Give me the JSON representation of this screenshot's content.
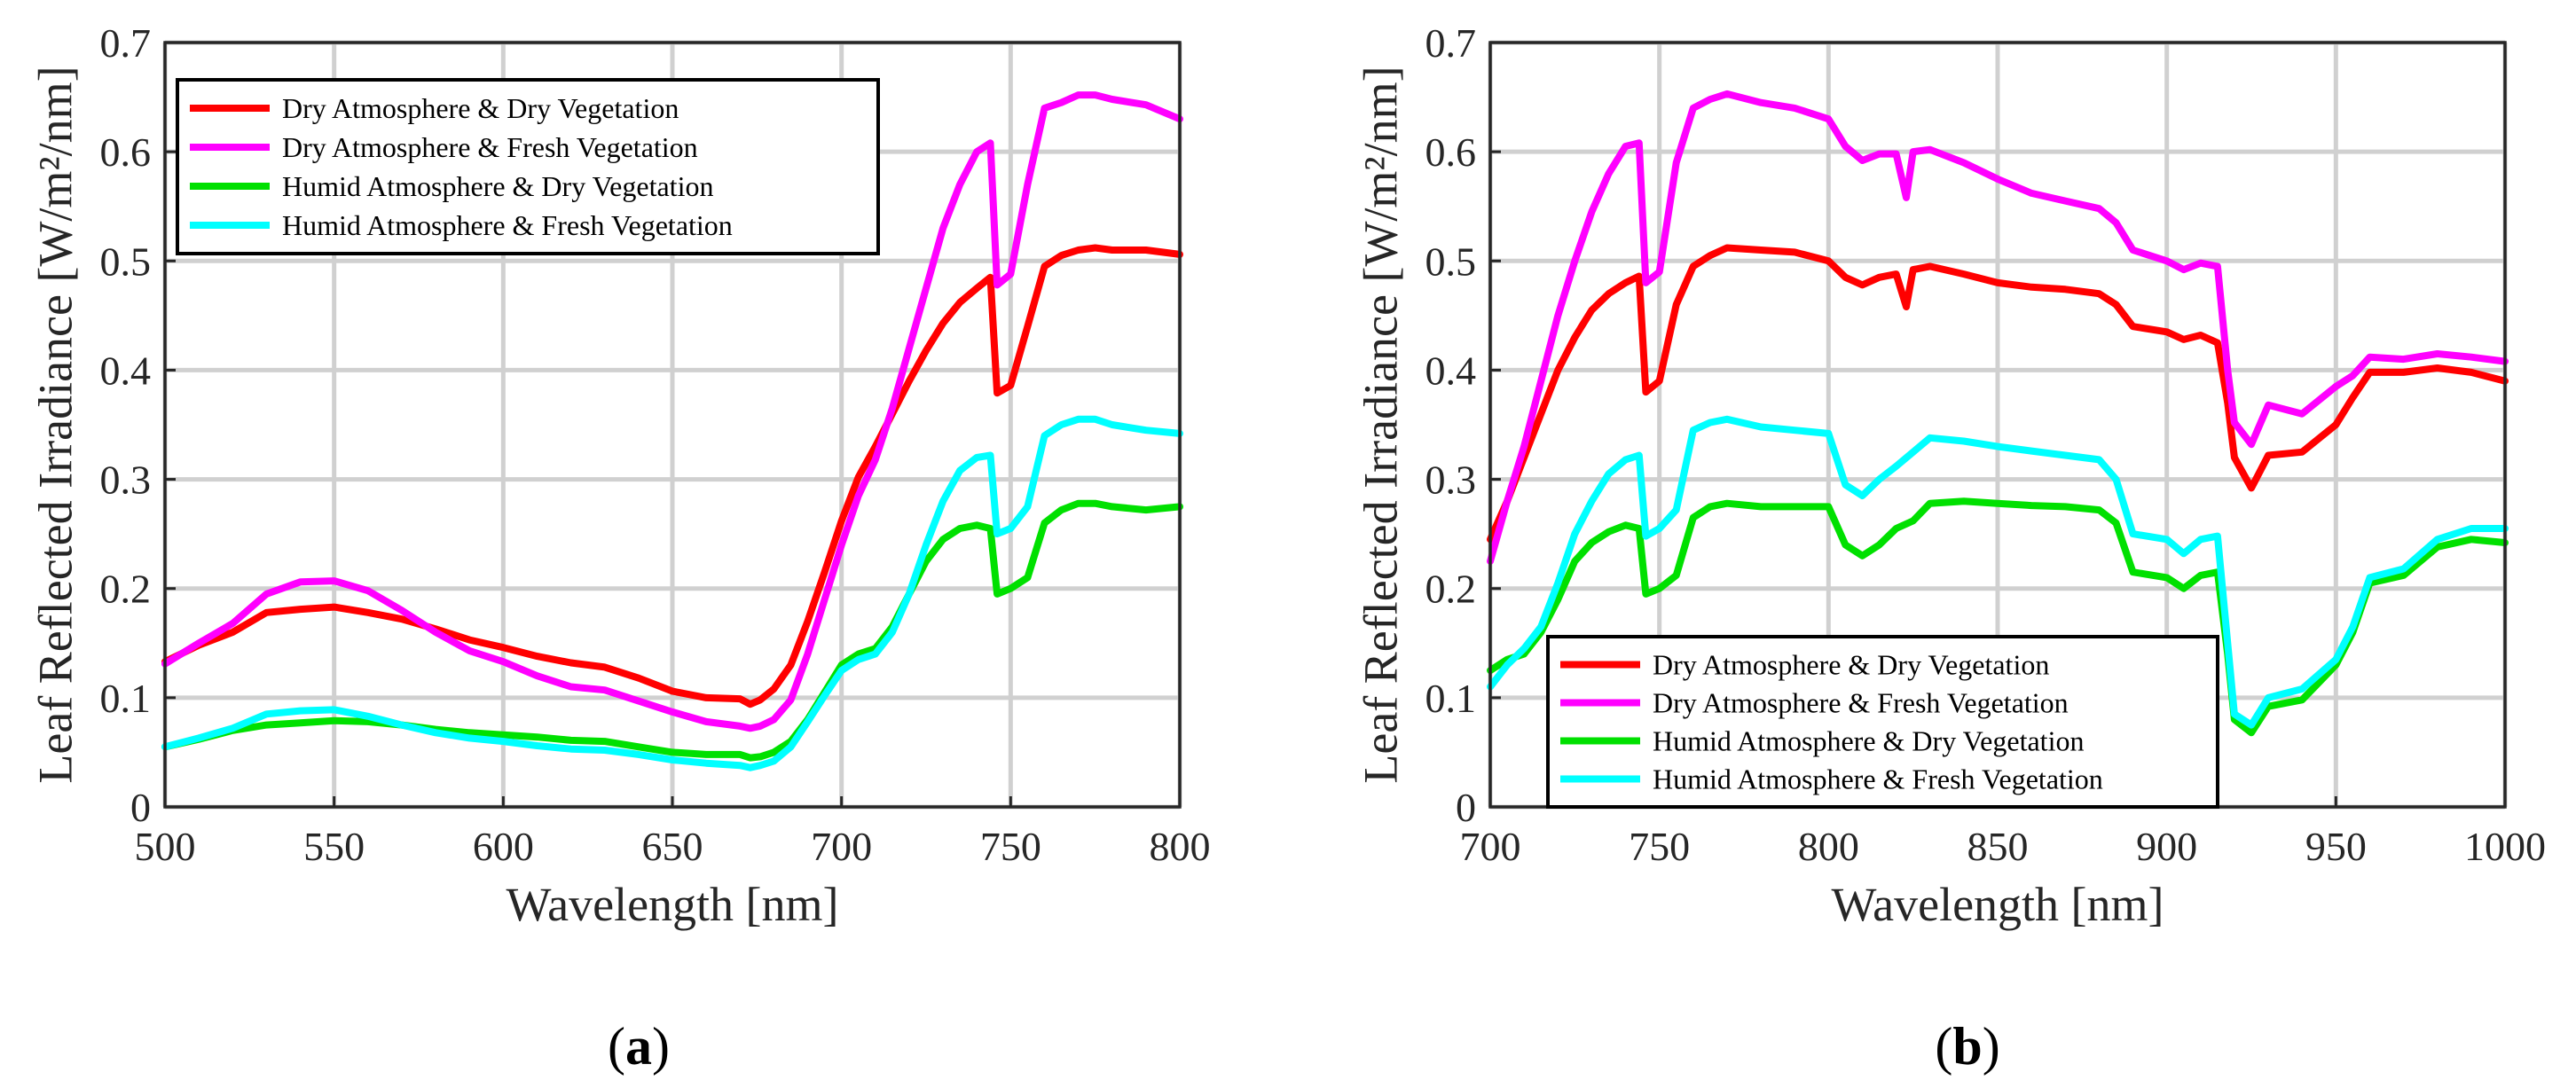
{
  "chart_data": [
    {
      "panel": "(a)",
      "type": "line",
      "xlabel": "Wavelength [nm]",
      "ylabel": "Leaf Reflected Irradiance [W/m²/nm]",
      "xlim": [
        500,
        800
      ],
      "ylim": [
        0,
        0.7
      ],
      "xticks": [
        500,
        550,
        600,
        650,
        700,
        750,
        800
      ],
      "yticks": [
        0,
        0.1,
        0.2,
        0.3,
        0.4,
        0.5,
        0.6,
        0.7
      ],
      "legend_position": "top-left",
      "series": [
        {
          "name": "Dry Atmosphere & Dry Vegetation",
          "color": "#ff0000",
          "x": [
            500,
            510,
            520,
            530,
            540,
            550,
            560,
            570,
            580,
            590,
            600,
            610,
            620,
            630,
            640,
            650,
            660,
            670,
            673,
            676,
            680,
            685,
            690,
            695,
            700,
            705,
            710,
            715,
            720,
            725,
            730,
            735,
            740,
            744,
            746,
            750,
            755,
            760,
            765,
            770,
            775,
            780,
            790,
            800
          ],
          "y": [
            0.133,
            0.148,
            0.16,
            0.178,
            0.181,
            0.183,
            0.178,
            0.172,
            0.163,
            0.153,
            0.146,
            0.138,
            0.132,
            0.128,
            0.118,
            0.106,
            0.1,
            0.099,
            0.094,
            0.098,
            0.108,
            0.13,
            0.17,
            0.215,
            0.262,
            0.302,
            0.33,
            0.36,
            0.39,
            0.418,
            0.443,
            0.462,
            0.475,
            0.485,
            0.379,
            0.386,
            0.44,
            0.495,
            0.505,
            0.51,
            0.512,
            0.51,
            0.51,
            0.506
          ]
        },
        {
          "name": "Dry Atmosphere & Fresh Vegetation",
          "color": "#ff00ff",
          "x": [
            500,
            510,
            520,
            530,
            540,
            550,
            560,
            570,
            580,
            590,
            600,
            610,
            620,
            630,
            640,
            650,
            660,
            670,
            673,
            676,
            680,
            685,
            690,
            695,
            700,
            705,
            710,
            715,
            720,
            725,
            730,
            735,
            740,
            744,
            746,
            750,
            755,
            760,
            765,
            770,
            775,
            780,
            790,
            800
          ],
          "y": [
            0.131,
            0.15,
            0.168,
            0.195,
            0.206,
            0.207,
            0.198,
            0.18,
            0.16,
            0.143,
            0.133,
            0.12,
            0.11,
            0.107,
            0.097,
            0.087,
            0.078,
            0.074,
            0.072,
            0.074,
            0.08,
            0.098,
            0.14,
            0.19,
            0.24,
            0.285,
            0.318,
            0.365,
            0.42,
            0.475,
            0.53,
            0.57,
            0.6,
            0.608,
            0.478,
            0.488,
            0.57,
            0.64,
            0.645,
            0.652,
            0.652,
            0.648,
            0.643,
            0.63
          ]
        },
        {
          "name": "Humid Atmosphere & Dry Vegetation",
          "color": "#00e000",
          "x": [
            500,
            510,
            520,
            530,
            540,
            550,
            560,
            570,
            580,
            590,
            600,
            610,
            620,
            630,
            640,
            650,
            660,
            670,
            673,
            676,
            680,
            685,
            690,
            695,
            700,
            705,
            710,
            715,
            720,
            725,
            730,
            735,
            740,
            744,
            746,
            750,
            755,
            760,
            765,
            770,
            775,
            780,
            790,
            800
          ],
          "y": [
            0.055,
            0.062,
            0.07,
            0.075,
            0.077,
            0.079,
            0.078,
            0.075,
            0.071,
            0.068,
            0.066,
            0.064,
            0.061,
            0.06,
            0.055,
            0.05,
            0.048,
            0.048,
            0.045,
            0.046,
            0.05,
            0.06,
            0.08,
            0.105,
            0.13,
            0.14,
            0.145,
            0.165,
            0.195,
            0.225,
            0.245,
            0.255,
            0.258,
            0.255,
            0.195,
            0.2,
            0.21,
            0.26,
            0.272,
            0.278,
            0.278,
            0.275,
            0.272,
            0.275
          ]
        },
        {
          "name": "Humid Atmosphere & Fresh Vegetation",
          "color": "#00ffff",
          "x": [
            500,
            510,
            520,
            530,
            540,
            550,
            560,
            570,
            580,
            590,
            600,
            610,
            620,
            630,
            640,
            650,
            660,
            670,
            673,
            676,
            680,
            685,
            690,
            695,
            700,
            705,
            710,
            715,
            720,
            725,
            730,
            735,
            740,
            744,
            746,
            750,
            755,
            760,
            765,
            770,
            775,
            780,
            790,
            800
          ],
          "y": [
            0.055,
            0.063,
            0.072,
            0.085,
            0.088,
            0.089,
            0.083,
            0.075,
            0.068,
            0.063,
            0.06,
            0.056,
            0.053,
            0.052,
            0.048,
            0.043,
            0.04,
            0.038,
            0.036,
            0.038,
            0.042,
            0.055,
            0.078,
            0.102,
            0.125,
            0.135,
            0.14,
            0.16,
            0.195,
            0.24,
            0.28,
            0.308,
            0.32,
            0.322,
            0.25,
            0.255,
            0.275,
            0.34,
            0.35,
            0.355,
            0.355,
            0.35,
            0.345,
            0.342
          ]
        }
      ]
    },
    {
      "panel": "(b)",
      "type": "line",
      "xlabel": "Wavelength [nm]",
      "ylabel": "Leaf Reflected Irradiance [W/m²/nm]",
      "xlim": [
        700,
        1000
      ],
      "ylim": [
        0,
        0.7
      ],
      "xticks": [
        700,
        750,
        800,
        850,
        900,
        950,
        1000
      ],
      "yticks": [
        0,
        0.1,
        0.2,
        0.3,
        0.4,
        0.5,
        0.6,
        0.7
      ],
      "legend_position": "bottom-left",
      "series": [
        {
          "name": "Dry Atmosphere & Dry Vegetation",
          "color": "#ff0000",
          "x": [
            700,
            705,
            710,
            715,
            720,
            725,
            730,
            735,
            740,
            744,
            746,
            750,
            755,
            760,
            765,
            770,
            780,
            790,
            800,
            805,
            810,
            815,
            820,
            823,
            825,
            830,
            840,
            850,
            860,
            870,
            880,
            885,
            890,
            900,
            905,
            910,
            915,
            918,
            920,
            925,
            930,
            940,
            950,
            955,
            960,
            970,
            980,
            990,
            1000
          ],
          "y": [
            0.245,
            0.28,
            0.32,
            0.36,
            0.4,
            0.43,
            0.455,
            0.47,
            0.48,
            0.486,
            0.38,
            0.39,
            0.46,
            0.495,
            0.505,
            0.512,
            0.51,
            0.508,
            0.5,
            0.485,
            0.478,
            0.485,
            0.488,
            0.458,
            0.492,
            0.495,
            0.488,
            0.48,
            0.476,
            0.474,
            0.47,
            0.46,
            0.44,
            0.435,
            0.428,
            0.432,
            0.425,
            0.37,
            0.32,
            0.292,
            0.322,
            0.325,
            0.35,
            0.375,
            0.398,
            0.398,
            0.402,
            0.398,
            0.39
          ]
        },
        {
          "name": "Dry Atmosphere & Fresh Vegetation",
          "color": "#ff00ff",
          "x": [
            700,
            705,
            710,
            715,
            720,
            725,
            730,
            735,
            740,
            744,
            746,
            750,
            755,
            760,
            765,
            770,
            780,
            790,
            800,
            805,
            810,
            815,
            820,
            823,
            825,
            830,
            840,
            850,
            860,
            870,
            880,
            885,
            890,
            900,
            905,
            910,
            915,
            918,
            920,
            925,
            930,
            940,
            950,
            955,
            960,
            970,
            980,
            990,
            1000
          ],
          "y": [
            0.225,
            0.28,
            0.33,
            0.39,
            0.45,
            0.5,
            0.545,
            0.58,
            0.605,
            0.608,
            0.48,
            0.49,
            0.59,
            0.64,
            0.648,
            0.653,
            0.645,
            0.64,
            0.63,
            0.605,
            0.592,
            0.598,
            0.598,
            0.558,
            0.6,
            0.602,
            0.59,
            0.575,
            0.562,
            0.555,
            0.548,
            0.535,
            0.51,
            0.5,
            0.492,
            0.498,
            0.495,
            0.4,
            0.352,
            0.332,
            0.368,
            0.36,
            0.385,
            0.395,
            0.412,
            0.41,
            0.415,
            0.412,
            0.408
          ]
        },
        {
          "name": "Humid Atmosphere & Dry Vegetation",
          "color": "#00e000",
          "x": [
            700,
            705,
            710,
            715,
            720,
            725,
            730,
            735,
            740,
            744,
            746,
            750,
            755,
            760,
            765,
            770,
            780,
            790,
            800,
            805,
            810,
            815,
            820,
            825,
            830,
            840,
            850,
            860,
            870,
            880,
            885,
            890,
            900,
            905,
            910,
            915,
            918,
            920,
            925,
            930,
            940,
            950,
            955,
            960,
            970,
            980,
            990,
            1000
          ],
          "y": [
            0.125,
            0.135,
            0.14,
            0.16,
            0.19,
            0.225,
            0.242,
            0.252,
            0.258,
            0.255,
            0.195,
            0.2,
            0.212,
            0.265,
            0.275,
            0.278,
            0.275,
            0.275,
            0.275,
            0.24,
            0.23,
            0.24,
            0.255,
            0.262,
            0.278,
            0.28,
            0.278,
            0.276,
            0.275,
            0.272,
            0.26,
            0.215,
            0.21,
            0.2,
            0.212,
            0.215,
            0.14,
            0.08,
            0.068,
            0.092,
            0.098,
            0.13,
            0.16,
            0.205,
            0.212,
            0.238,
            0.245,
            0.242
          ]
        },
        {
          "name": "Humid Atmosphere & Fresh Vegetation",
          "color": "#00ffff",
          "x": [
            700,
            705,
            710,
            715,
            720,
            725,
            730,
            735,
            740,
            744,
            746,
            750,
            755,
            760,
            765,
            770,
            780,
            790,
            800,
            805,
            810,
            815,
            820,
            825,
            830,
            840,
            850,
            860,
            870,
            880,
            885,
            890,
            900,
            905,
            910,
            915,
            918,
            920,
            925,
            930,
            940,
            950,
            955,
            960,
            970,
            980,
            990,
            1000
          ],
          "y": [
            0.11,
            0.13,
            0.145,
            0.165,
            0.205,
            0.25,
            0.28,
            0.305,
            0.318,
            0.322,
            0.248,
            0.255,
            0.272,
            0.345,
            0.352,
            0.355,
            0.348,
            0.345,
            0.342,
            0.295,
            0.285,
            0.3,
            0.312,
            0.325,
            0.338,
            0.335,
            0.33,
            0.326,
            0.322,
            0.318,
            0.3,
            0.25,
            0.245,
            0.232,
            0.245,
            0.248,
            0.15,
            0.085,
            0.075,
            0.1,
            0.108,
            0.135,
            0.165,
            0.21,
            0.218,
            0.245,
            0.255,
            0.255
          ]
        }
      ]
    }
  ]
}
